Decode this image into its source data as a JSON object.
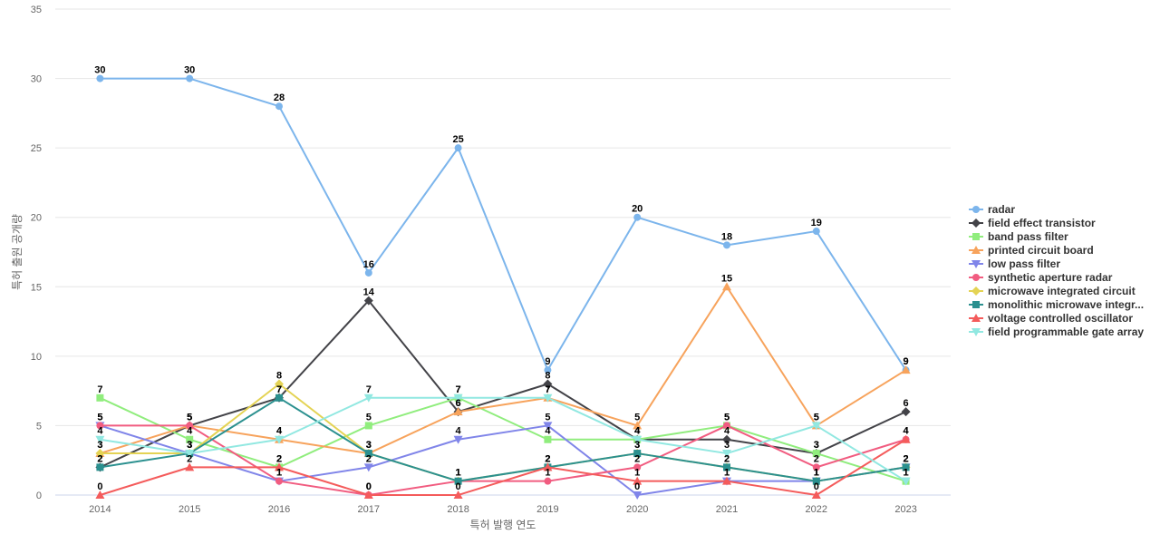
{
  "chart_data": {
    "type": "line",
    "title": "",
    "xlabel": "특허 발행 연도",
    "ylabel": "특허 출원 공개량",
    "x": [
      "2014",
      "2015",
      "2016",
      "2017",
      "2018",
      "2019",
      "2020",
      "2021",
      "2022",
      "2023"
    ],
    "ylim": [
      0,
      35
    ],
    "yticks": [
      "0",
      "5",
      "10",
      "15",
      "20",
      "25",
      "30",
      "35"
    ],
    "grid": true,
    "legend_position": "right",
    "series": [
      {
        "name": "radar",
        "color": "#7cb5ec",
        "marker": "circle",
        "values": [
          30,
          30,
          28,
          16,
          25,
          9,
          20,
          18,
          19,
          9
        ]
      },
      {
        "name": "field effect transistor",
        "color": "#434348",
        "marker": "diamond",
        "values": [
          2,
          5,
          7,
          14,
          6,
          8,
          4,
          4,
          3,
          6
        ]
      },
      {
        "name": "band pass filter",
        "color": "#90ed7d",
        "marker": "square",
        "values": [
          7,
          4,
          2,
          5,
          7,
          4,
          4,
          5,
          3,
          1
        ]
      },
      {
        "name": "printed circuit board",
        "color": "#f7a35c",
        "marker": "triangle",
        "values": [
          3,
          5,
          4,
          3,
          6,
          7,
          5,
          15,
          5,
          9
        ]
      },
      {
        "name": "low pass filter",
        "color": "#8085e9",
        "marker": "triangle-down",
        "values": [
          5,
          3,
          1,
          2,
          4,
          5,
          0,
          1,
          1,
          2
        ]
      },
      {
        "name": "synthetic aperture radar",
        "color": "#f15c80",
        "marker": "circle",
        "values": [
          5,
          5,
          1,
          0,
          1,
          1,
          2,
          5,
          2,
          4
        ]
      },
      {
        "name": "microwave integrated circuit",
        "color": "#e4d354",
        "marker": "diamond",
        "values": [
          3,
          3,
          8,
          3,
          1,
          2,
          3,
          2,
          1,
          2
        ]
      },
      {
        "name": "monolithic microwave integr...",
        "color": "#2b908f",
        "marker": "square",
        "values": [
          2,
          3,
          7,
          3,
          1,
          2,
          3,
          2,
          1,
          2
        ]
      },
      {
        "name": "voltage controlled oscillator",
        "color": "#f45b5b",
        "marker": "triangle",
        "values": [
          0,
          2,
          2,
          0,
          0,
          2,
          1,
          1,
          0,
          4
        ]
      },
      {
        "name": "field programmable gate array",
        "color": "#91e8e1",
        "marker": "triangle-down",
        "values": [
          4,
          3,
          4,
          7,
          7,
          7,
          4,
          3,
          5,
          1
        ]
      }
    ]
  }
}
